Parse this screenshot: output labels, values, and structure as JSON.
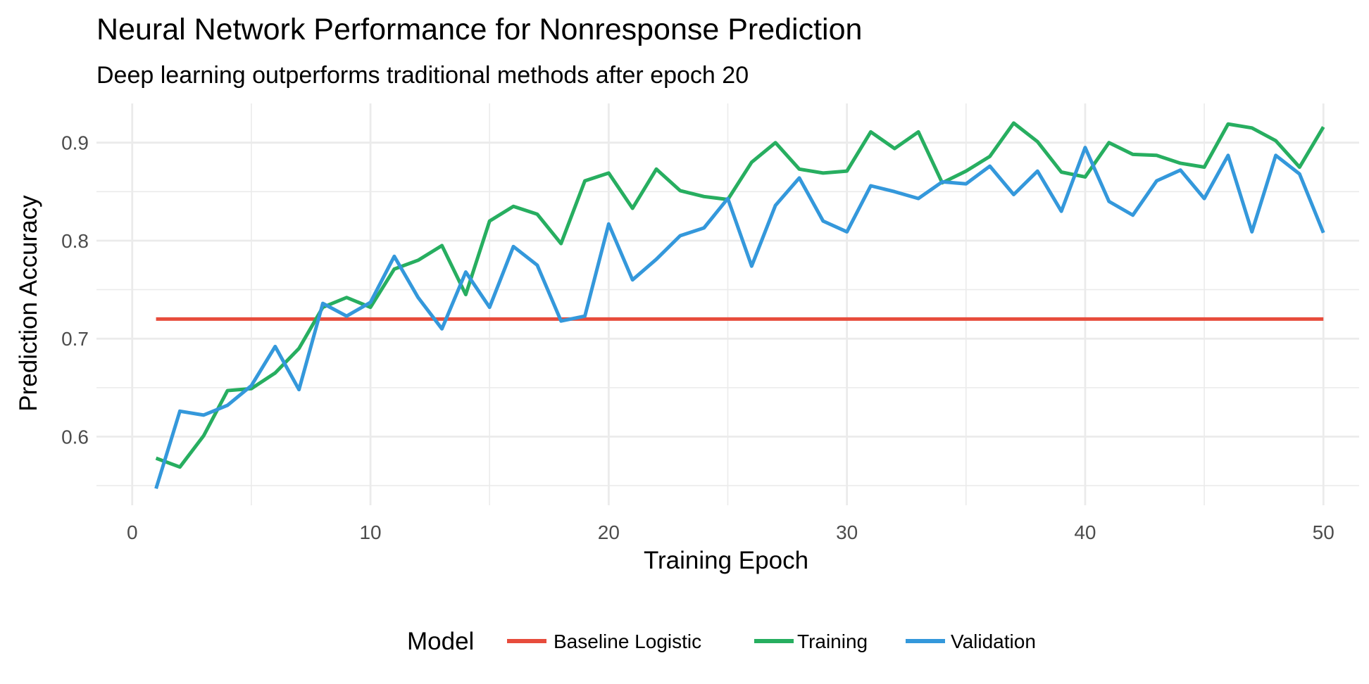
{
  "chart_data": {
    "type": "line",
    "title": "Neural Network Performance for Nonresponse Prediction",
    "subtitle": "Deep learning outperforms traditional methods after epoch 20",
    "xlabel": "Training Epoch",
    "ylabel": "Prediction Accuracy",
    "xlim": [
      -1.5,
      51.5
    ],
    "ylim": [
      0.53,
      0.94
    ],
    "x_ticks": [
      0,
      10,
      20,
      30,
      40,
      50
    ],
    "y_ticks": [
      0.6,
      0.7,
      0.8,
      0.9
    ],
    "x_tick_labels": [
      "0",
      "10",
      "20",
      "30",
      "40",
      "50"
    ],
    "y_tick_labels": [
      "0.6",
      "0.7",
      "0.8",
      "0.9"
    ],
    "grid": true,
    "legend": {
      "title": "Model",
      "position": "bottom"
    },
    "x": [
      1,
      2,
      3,
      4,
      5,
      6,
      7,
      8,
      9,
      10,
      11,
      12,
      13,
      14,
      15,
      16,
      17,
      18,
      19,
      20,
      21,
      22,
      23,
      24,
      25,
      26,
      27,
      28,
      29,
      30,
      31,
      32,
      33,
      34,
      35,
      36,
      37,
      38,
      39,
      40,
      41,
      42,
      43,
      44,
      45,
      46,
      47,
      48,
      49,
      50
    ],
    "series": [
      {
        "name": "Baseline Logistic",
        "color": "#e74c3c",
        "values": [
          0.72,
          0.72,
          0.72,
          0.72,
          0.72,
          0.72,
          0.72,
          0.72,
          0.72,
          0.72,
          0.72,
          0.72,
          0.72,
          0.72,
          0.72,
          0.72,
          0.72,
          0.72,
          0.72,
          0.72,
          0.72,
          0.72,
          0.72,
          0.72,
          0.72,
          0.72,
          0.72,
          0.72,
          0.72,
          0.72,
          0.72,
          0.72,
          0.72,
          0.72,
          0.72,
          0.72,
          0.72,
          0.72,
          0.72,
          0.72,
          0.72,
          0.72,
          0.72,
          0.72,
          0.72,
          0.72,
          0.72,
          0.72,
          0.72,
          0.72
        ]
      },
      {
        "name": "Training",
        "color": "#27ae60",
        "values": [
          0.578,
          0.569,
          0.601,
          0.647,
          0.649,
          0.665,
          0.69,
          0.732,
          0.742,
          0.732,
          0.771,
          0.78,
          0.795,
          0.745,
          0.82,
          0.835,
          0.827,
          0.797,
          0.861,
          0.869,
          0.833,
          0.873,
          0.851,
          0.845,
          0.842,
          0.88,
          0.9,
          0.873,
          0.869,
          0.871,
          0.911,
          0.894,
          0.911,
          0.859,
          0.871,
          0.886,
          0.92,
          0.901,
          0.87,
          0.865,
          0.9,
          0.888,
          0.887,
          0.879,
          0.875,
          0.919,
          0.915,
          0.902,
          0.875,
          0.916
        ]
      },
      {
        "name": "Validation",
        "color": "#3498db",
        "values": [
          0.547,
          0.626,
          0.622,
          0.632,
          0.652,
          0.692,
          0.648,
          0.736,
          0.723,
          0.737,
          0.784,
          0.742,
          0.71,
          0.768,
          0.732,
          0.794,
          0.775,
          0.718,
          0.723,
          0.817,
          0.76,
          0.781,
          0.805,
          0.813,
          0.843,
          0.774,
          0.836,
          0.864,
          0.82,
          0.809,
          0.856,
          0.85,
          0.843,
          0.86,
          0.858,
          0.876,
          0.847,
          0.871,
          0.83,
          0.895,
          0.84,
          0.826,
          0.861,
          0.872,
          0.843,
          0.887,
          0.809,
          0.887,
          0.868,
          0.808
        ]
      }
    ]
  }
}
